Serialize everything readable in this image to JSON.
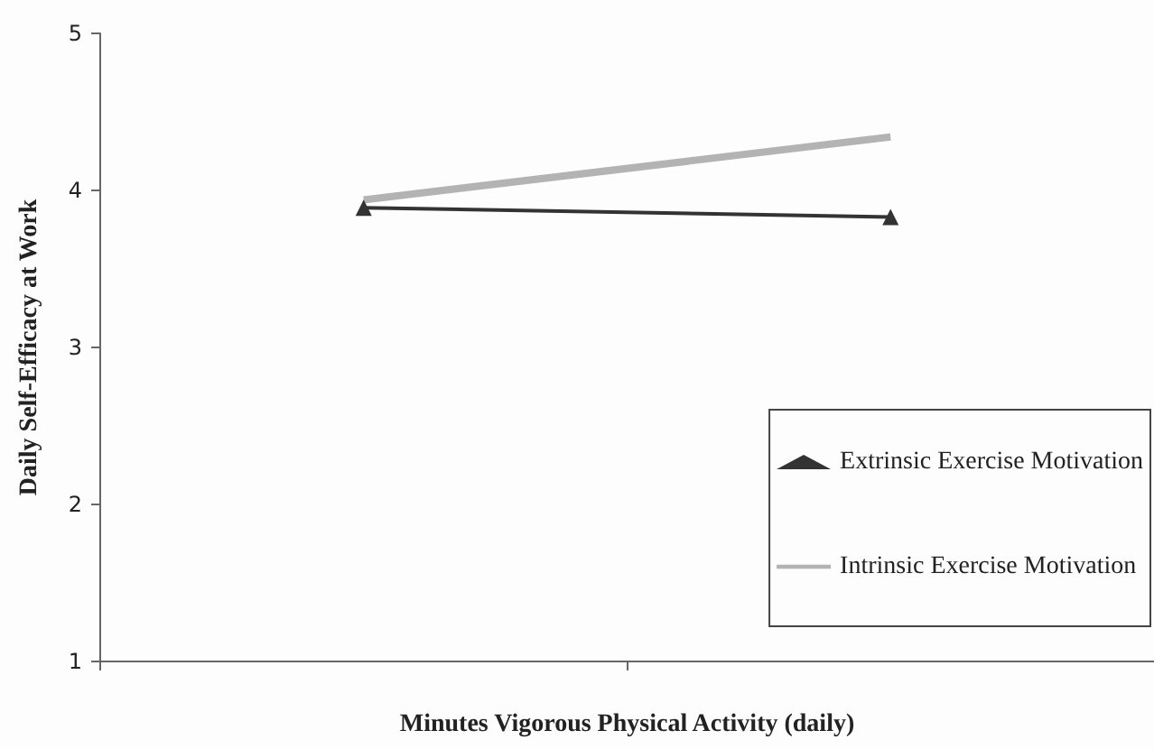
{
  "chart_data": {
    "type": "line",
    "xlabel": "Minutes Vigorous Physical Activity (daily)",
    "ylabel": "Daily Self-Efficacy at Work",
    "categories": [
      null,
      null
    ],
    "series": [
      {
        "name": "Extrinsic Exercise Motivation",
        "color": "#333333",
        "values": [
          3.89,
          3.83
        ],
        "marker": "triangle"
      },
      {
        "name": "Intrinsic Exercise Motivation",
        "color": "#b3b3b3",
        "values": [
          3.94,
          4.34
        ],
        "marker": "none"
      }
    ],
    "ylim": [
      1,
      5
    ],
    "yticks": [
      1,
      2,
      3,
      4,
      5
    ],
    "grid": false,
    "legend": "bottom right",
    "tick_labels": "y"
  }
}
